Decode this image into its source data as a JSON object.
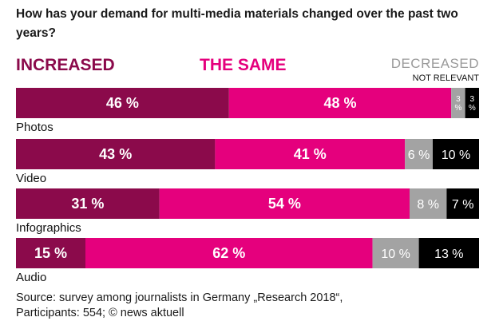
{
  "title": "How has your demand for multi-media materials changed over the past two years?",
  "legend": {
    "increased": "INCREASED",
    "same": "THE SAME",
    "decreased": "DECREASED",
    "not_relevant": "NOT RELEVANT"
  },
  "source_line1": "Source: survey among journalists in Germany „Research 2018“,",
  "source_line2": "Participants: 554; © news aktuell",
  "chart_data": {
    "type": "bar",
    "stacked": true,
    "orientation": "horizontal",
    "categories": [
      "Photos",
      "Video",
      "Infographics",
      "Audio"
    ],
    "series": [
      {
        "name": "INCREASED",
        "color": "#8b0a4b",
        "text_color": "#ffffff",
        "values": [
          46,
          43,
          31,
          15
        ],
        "labels": [
          "46 %",
          "43 %",
          "31 %",
          "15 %"
        ]
      },
      {
        "name": "THE SAME",
        "color": "#e5007d",
        "text_color": "#ffffff",
        "values": [
          48,
          41,
          54,
          62
        ],
        "labels": [
          "48 %",
          "41 %",
          "54 %",
          "62 %"
        ]
      },
      {
        "name": "DECREASED",
        "color": "#a3a3a3",
        "text_color": "#ffffff",
        "values": [
          3,
          6,
          8,
          10
        ],
        "labels": [
          "3 %",
          "6 %",
          "8 %",
          "10 %"
        ]
      },
      {
        "name": "NOT RELEVANT",
        "color": "#000000",
        "text_color": "#ffffff",
        "values": [
          3,
          10,
          7,
          13
        ],
        "labels": [
          "3 %",
          "10 %",
          "7 %",
          "13 %"
        ]
      }
    ],
    "xlim": [
      0,
      100
    ],
    "legend_position": "top"
  }
}
